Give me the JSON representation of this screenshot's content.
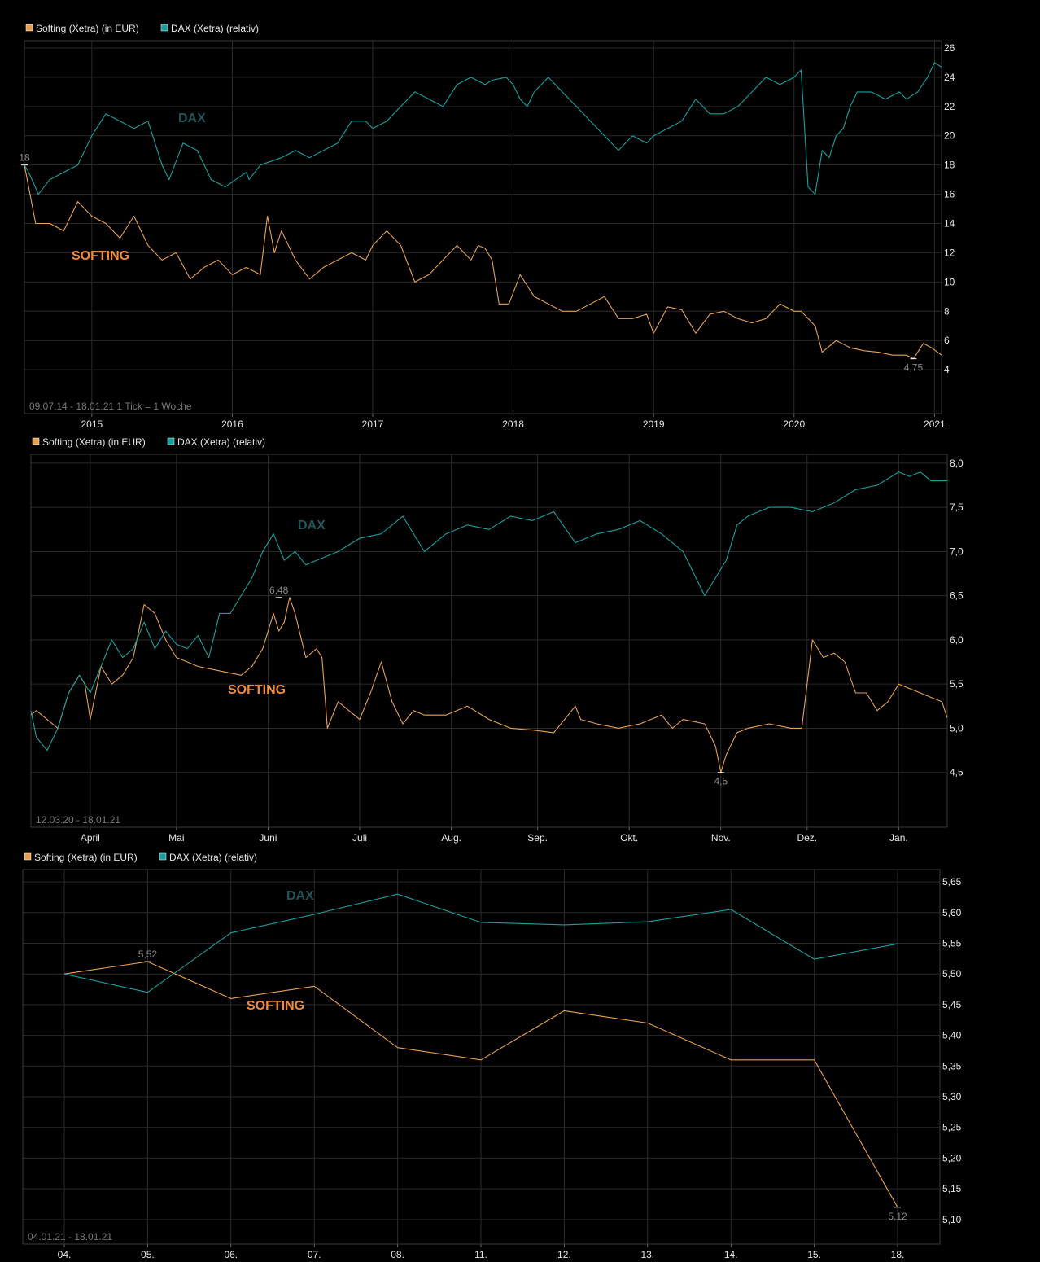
{
  "legend": {
    "softing": "Softing (Xetra) (in EUR)",
    "dax": "DAX (Xetra) (relativ)",
    "softing_color": "#e8a050",
    "dax_color": "#18a0a0"
  },
  "labels": {
    "dax": "DAX",
    "softing": "SOFTING"
  },
  "chart_data": [
    {
      "type": "line",
      "range_label": "09.07.14 - 18.01.21   1 Tick = 1 Woche",
      "xlim": [
        2014.52,
        2021.05
      ],
      "ylim": [
        1,
        26.5
      ],
      "x_ticks": [
        {
          "value": 2015,
          "label": "2015"
        },
        {
          "value": 2016,
          "label": "2016"
        },
        {
          "value": 2017,
          "label": "2017"
        },
        {
          "value": 2018,
          "label": "2018"
        },
        {
          "value": 2019,
          "label": "2019"
        },
        {
          "value": 2020,
          "label": "2020"
        },
        {
          "value": 2021,
          "label": "2021"
        }
      ],
      "y_ticks": [
        {
          "value": 4,
          "label": "4"
        },
        {
          "value": 6,
          "label": "6"
        },
        {
          "value": 8,
          "label": "8"
        },
        {
          "value": 10,
          "label": "10"
        },
        {
          "value": 12,
          "label": "12"
        },
        {
          "value": 14,
          "label": "14"
        },
        {
          "value": 16,
          "label": "16"
        },
        {
          "value": 18,
          "label": "18"
        },
        {
          "value": 20,
          "label": "20"
        },
        {
          "value": 22,
          "label": "22"
        },
        {
          "value": 24,
          "label": "24"
        },
        {
          "value": 26,
          "label": "26"
        }
      ],
      "series": [
        {
          "name": "Softing (Xetra) (in EUR)",
          "x": [
            2014.52,
            2014.6,
            2014.7,
            2014.8,
            2014.9,
            2015.0,
            2015.1,
            2015.2,
            2015.3,
            2015.4,
            2015.5,
            2015.6,
            2015.7,
            2015.8,
            2015.9,
            2016.0,
            2016.1,
            2016.2,
            2016.25,
            2016.3,
            2016.35,
            2016.45,
            2016.55,
            2016.65,
            2016.75,
            2016.85,
            2016.95,
            2017.0,
            2017.1,
            2017.2,
            2017.3,
            2017.4,
            2017.5,
            2017.6,
            2017.7,
            2017.75,
            2017.8,
            2017.85,
            2017.9,
            2017.97,
            2018.05,
            2018.15,
            2018.25,
            2018.35,
            2018.45,
            2018.55,
            2018.65,
            2018.75,
            2018.85,
            2018.95,
            2019.0,
            2019.1,
            2019.2,
            2019.3,
            2019.4,
            2019.5,
            2019.6,
            2019.7,
            2019.8,
            2019.9,
            2020.0,
            2020.05,
            2020.15,
            2020.2,
            2020.3,
            2020.4,
            2020.5,
            2020.6,
            2020.7,
            2020.8,
            2020.85,
            2020.92,
            2020.98,
            2021.05
          ],
          "values": [
            18,
            14,
            14,
            13.5,
            15.5,
            14.5,
            14,
            13,
            14.5,
            12.5,
            11.5,
            12,
            10.2,
            11,
            11.5,
            10.5,
            11,
            10.5,
            14.5,
            12,
            13.5,
            11.5,
            10.2,
            11,
            11.5,
            12,
            11.5,
            12.5,
            13.5,
            12.5,
            10,
            10.5,
            11.5,
            12.5,
            11.5,
            12.5,
            12.3,
            11.5,
            8.5,
            8.5,
            10.5,
            9,
            8.5,
            8,
            8,
            8.5,
            9,
            7.5,
            7.5,
            7.8,
            6.5,
            8.3,
            8.1,
            6.5,
            7.8,
            8,
            7.5,
            7.2,
            7.5,
            8.5,
            8,
            8,
            7,
            5.2,
            6,
            5.5,
            5.3,
            5.2,
            5,
            5,
            4.75,
            5.8,
            5.5,
            5
          ]
        },
        {
          "name": "DAX (Xetra) (relativ)",
          "x": [
            2014.52,
            2014.55,
            2014.62,
            2014.7,
            2014.8,
            2014.9,
            2015.0,
            2015.1,
            2015.2,
            2015.3,
            2015.4,
            2015.5,
            2015.55,
            2015.65,
            2015.75,
            2015.85,
            2015.95,
            2016.1,
            2016.12,
            2016.2,
            2016.35,
            2016.45,
            2016.55,
            2016.65,
            2016.75,
            2016.85,
            2016.95,
            2017.0,
            2017.1,
            2017.2,
            2017.3,
            2017.4,
            2017.5,
            2017.6,
            2017.7,
            2017.8,
            2017.85,
            2017.95,
            2018.0,
            2018.05,
            2018.1,
            2018.15,
            2018.25,
            2018.35,
            2018.45,
            2018.55,
            2018.65,
            2018.75,
            2018.85,
            2018.95,
            2019.0,
            2019.1,
            2019.2,
            2019.3,
            2019.4,
            2019.5,
            2019.6,
            2019.7,
            2019.8,
            2019.9,
            2020.0,
            2020.05,
            2020.1,
            2020.15,
            2020.2,
            2020.25,
            2020.3,
            2020.35,
            2020.4,
            2020.45,
            2020.55,
            2020.65,
            2020.75,
            2020.8,
            2020.88,
            2020.95,
            2021.0,
            2021.05
          ],
          "values": [
            18,
            17.5,
            16,
            17,
            17.5,
            18,
            20,
            21.5,
            21,
            20.5,
            21,
            18,
            17,
            19.5,
            19,
            17,
            16.5,
            17.5,
            17,
            18,
            18.5,
            19,
            18.5,
            19,
            19.5,
            21,
            21,
            20.5,
            21,
            22,
            23,
            22.5,
            22,
            23.5,
            24,
            23.5,
            23.8,
            24,
            23.5,
            22.5,
            22,
            23,
            24,
            23,
            22,
            21,
            20,
            19,
            20,
            19.5,
            20,
            20.5,
            21,
            22.5,
            21.5,
            21.5,
            22,
            23,
            24,
            23.5,
            24,
            24.5,
            16.5,
            16,
            19,
            18.5,
            20,
            20.5,
            22,
            23,
            23,
            22.5,
            23,
            22.5,
            23,
            24,
            25,
            24.7
          ]
        }
      ],
      "annotations": [
        {
          "x": 2014.52,
          "y": 18,
          "label": "18"
        },
        {
          "x": 2020.85,
          "y": 4.75,
          "label": "4,75"
        }
      ]
    },
    {
      "type": "line",
      "range_label": "12.03.20 - 18.01.21",
      "xlim": [
        2020.195,
        2021.045
      ],
      "ylim": [
        3.88,
        8.1
      ],
      "x_ticks": [
        {
          "value": 2020.25,
          "label": "April"
        },
        {
          "value": 2020.33,
          "label": "Mai"
        },
        {
          "value": 2020.415,
          "label": "Juni"
        },
        {
          "value": 2020.5,
          "label": "Juli"
        },
        {
          "value": 2020.585,
          "label": "Aug."
        },
        {
          "value": 2020.665,
          "label": "Sep."
        },
        {
          "value": 2020.75,
          "label": "Okt."
        },
        {
          "value": 2020.835,
          "label": "Nov."
        },
        {
          "value": 2020.915,
          "label": "Dez."
        },
        {
          "value": 2021.0,
          "label": "Jan."
        }
      ],
      "y_ticks": [
        {
          "value": 4.5,
          "label": "4,5"
        },
        {
          "value": 5.0,
          "label": "5,0"
        },
        {
          "value": 5.5,
          "label": "5,5"
        },
        {
          "value": 6.0,
          "label": "6,0"
        },
        {
          "value": 6.5,
          "label": "6,5"
        },
        {
          "value": 7.0,
          "label": "7,0"
        },
        {
          "value": 7.5,
          "label": "7,5"
        },
        {
          "value": 8.0,
          "label": "8,0"
        }
      ],
      "series": [
        {
          "name": "Softing (Xetra) (in EUR)",
          "x": [
            2020.195,
            2020.2,
            2020.21,
            2020.22,
            2020.225,
            2020.23,
            2020.24,
            2020.245,
            2020.25,
            2020.26,
            2020.27,
            2020.28,
            2020.29,
            2020.3,
            2020.31,
            2020.32,
            2020.33,
            2020.34,
            2020.35,
            2020.37,
            2020.39,
            2020.4,
            2020.41,
            2020.42,
            2020.425,
            2020.43,
            2020.435,
            2020.44,
            2020.45,
            2020.46,
            2020.465,
            2020.47,
            2020.48,
            2020.5,
            2020.51,
            2020.52,
            2020.53,
            2020.54,
            2020.55,
            2020.56,
            2020.58,
            2020.6,
            2020.62,
            2020.64,
            2020.66,
            2020.68,
            2020.7,
            2020.705,
            2020.72,
            2020.74,
            2020.76,
            2020.78,
            2020.79,
            2020.8,
            2020.82,
            2020.83,
            2020.835,
            2020.84,
            2020.85,
            2020.86,
            2020.88,
            2020.9,
            2020.91,
            2020.92,
            2020.93,
            2020.94,
            2020.95,
            2020.96,
            2020.97,
            2020.98,
            2020.99,
            2021.0,
            2021.01,
            2021.02,
            2021.03,
            2021.04,
            2021.045
          ],
          "values": [
            5.15,
            5.2,
            5.1,
            5.0,
            5.2,
            5.4,
            5.6,
            5.5,
            5.1,
            5.7,
            5.5,
            5.6,
            5.8,
            6.4,
            6.3,
            6.0,
            5.8,
            5.75,
            5.7,
            5.65,
            5.6,
            5.7,
            5.9,
            6.3,
            6.1,
            6.2,
            6.48,
            6.3,
            5.8,
            5.9,
            5.8,
            5.0,
            5.3,
            5.1,
            5.4,
            5.75,
            5.3,
            5.05,
            5.2,
            5.15,
            5.15,
            5.25,
            5.1,
            5.0,
            4.98,
            4.95,
            5.25,
            5.1,
            5.05,
            5.0,
            5.05,
            5.15,
            5.0,
            5.1,
            5.05,
            4.8,
            4.5,
            4.7,
            4.95,
            5.0,
            5.05,
            5.0,
            5.0,
            6.0,
            5.8,
            5.85,
            5.75,
            5.4,
            5.4,
            5.2,
            5.3,
            5.5,
            5.45,
            5.4,
            5.35,
            5.3,
            5.12
          ]
        },
        {
          "name": "DAX (Xetra) (relativ)",
          "x": [
            2020.195,
            2020.2,
            2020.21,
            2020.22,
            2020.23,
            2020.24,
            2020.25,
            2020.26,
            2020.27,
            2020.28,
            2020.29,
            2020.3,
            2020.31,
            2020.32,
            2020.33,
            2020.34,
            2020.35,
            2020.36,
            2020.37,
            2020.38,
            2020.39,
            2020.4,
            2020.41,
            2020.42,
            2020.43,
            2020.44,
            2020.45,
            2020.46,
            2020.48,
            2020.5,
            2020.52,
            2020.54,
            2020.56,
            2020.58,
            2020.6,
            2020.62,
            2020.64,
            2020.66,
            2020.68,
            2020.7,
            2020.72,
            2020.74,
            2020.76,
            2020.78,
            2020.8,
            2020.82,
            2020.84,
            2020.85,
            2020.86,
            2020.87,
            2020.88,
            2020.9,
            2020.92,
            2020.94,
            2020.96,
            2020.98,
            2021.0,
            2021.01,
            2021.02,
            2021.03,
            2021.04,
            2021.045
          ],
          "values": [
            5.2,
            4.9,
            4.75,
            5.0,
            5.4,
            5.6,
            5.4,
            5.7,
            6.0,
            5.8,
            5.9,
            6.2,
            5.9,
            6.1,
            5.95,
            5.9,
            6.05,
            5.8,
            6.3,
            6.3,
            6.5,
            6.7,
            7.0,
            7.2,
            6.9,
            7.0,
            6.85,
            6.9,
            7.0,
            7.15,
            7.2,
            7.4,
            7.0,
            7.2,
            7.3,
            7.25,
            7.4,
            7.35,
            7.45,
            7.1,
            7.2,
            7.25,
            7.35,
            7.2,
            7.0,
            6.5,
            6.9,
            7.3,
            7.4,
            7.45,
            7.5,
            7.5,
            7.45,
            7.55,
            7.7,
            7.75,
            7.9,
            7.85,
            7.9,
            7.8,
            7.8,
            7.8
          ]
        }
      ],
      "annotations": [
        {
          "x": 2020.425,
          "y": 6.48,
          "label": "6,48"
        },
        {
          "x": 2020.835,
          "y": 4.5,
          "label": "4,5"
        }
      ]
    },
    {
      "type": "line",
      "range_label": "04.01.21 - 18.01.21",
      "categories": [
        "04.",
        "05.",
        "06.",
        "07.",
        "08.",
        "11.",
        "12.",
        "13.",
        "14.",
        "15.",
        "18."
      ],
      "ylim": [
        5.06,
        5.67
      ],
      "y_ticks": [
        {
          "value": 5.1,
          "label": "5,10"
        },
        {
          "value": 5.15,
          "label": "5,15"
        },
        {
          "value": 5.2,
          "label": "5,20"
        },
        {
          "value": 5.25,
          "label": "5,25"
        },
        {
          "value": 5.3,
          "label": "5,30"
        },
        {
          "value": 5.35,
          "label": "5,35"
        },
        {
          "value": 5.4,
          "label": "5,40"
        },
        {
          "value": 5.45,
          "label": "5,45"
        },
        {
          "value": 5.5,
          "label": "5,50"
        },
        {
          "value": 5.55,
          "label": "5,55"
        },
        {
          "value": 5.6,
          "label": "5,60"
        },
        {
          "value": 5.65,
          "label": "5,65"
        }
      ],
      "series": [
        {
          "name": "Softing (Xetra) (in EUR)",
          "values": [
            5.5,
            5.52,
            5.46,
            5.48,
            5.38,
            5.36,
            5.44,
            5.42,
            5.36,
            5.36,
            5.12
          ]
        },
        {
          "name": "DAX (Xetra) (relativ)",
          "values": [
            5.5,
            5.47,
            5.567,
            5.597,
            5.63,
            5.584,
            5.58,
            5.585,
            5.605,
            5.524,
            5.549
          ]
        }
      ],
      "annotations": [
        {
          "index": 1,
          "y": 5.52,
          "label": "5,52"
        },
        {
          "index": 10,
          "y": 5.12,
          "label": "5,12"
        }
      ]
    }
  ]
}
